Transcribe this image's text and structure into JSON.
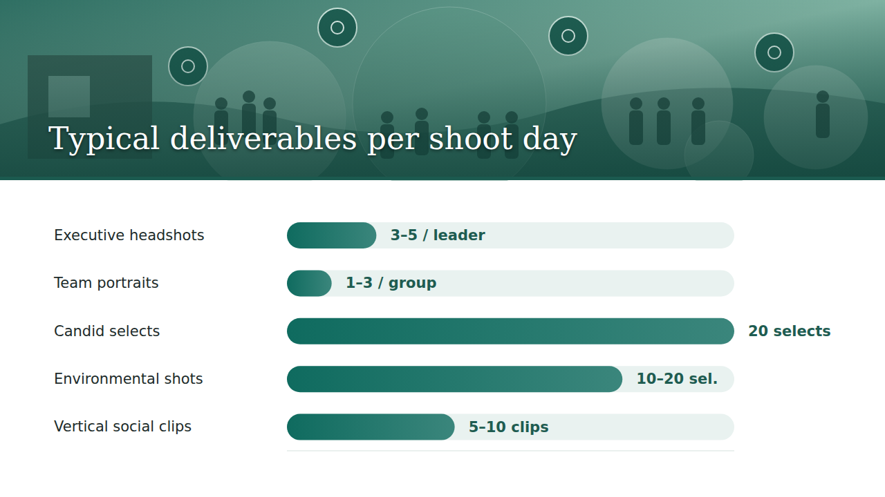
{
  "chart_data": {
    "type": "bar",
    "orientation": "horizontal",
    "title": "Typical deliverables per shoot day",
    "categories": [
      "Executive headshots",
      "Team portraits",
      "Candid selects",
      "Environmental shots",
      "Vertical social clips"
    ],
    "values": [
      4,
      2,
      20,
      15,
      7.5
    ],
    "value_labels": [
      "3–5 / leader",
      "1–3 / group",
      "20 selects",
      "10–20 sel.",
      "5–10 clips"
    ],
    "color": "#0f6b5f",
    "xlim": [
      0,
      20
    ],
    "xticks": [
      0,
      20
    ],
    "grid": false,
    "data_labels": true,
    "tick_labels": "y"
  }
}
